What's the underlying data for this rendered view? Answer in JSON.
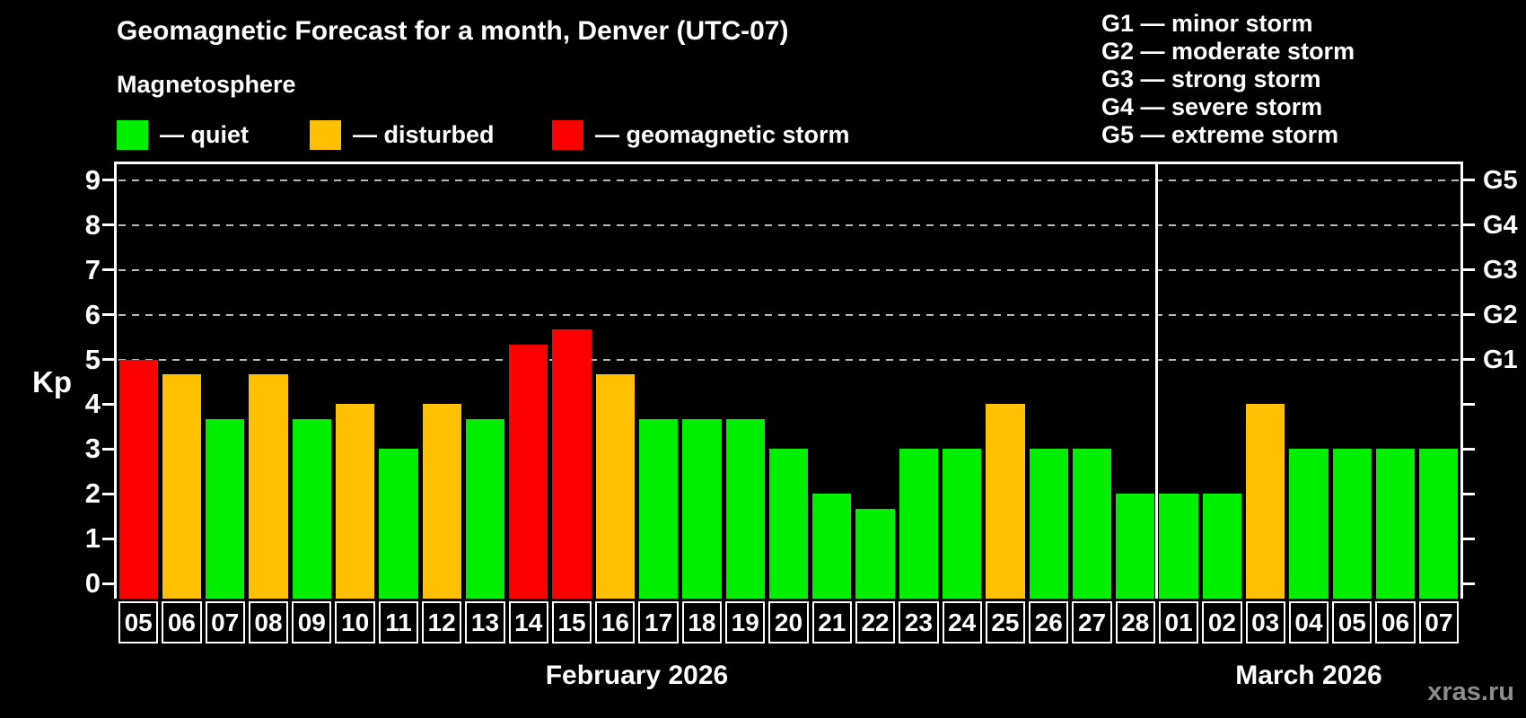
{
  "title": "Geomagnetic Forecast for a month, Denver (UTC-07)",
  "subtitle": "Magnetosphere",
  "legend": {
    "items": [
      {
        "key": "quiet",
        "label": "— quiet",
        "color": "#00ee00"
      },
      {
        "key": "disturbed",
        "label": "— disturbed",
        "color": "#ffc000"
      },
      {
        "key": "storm",
        "label": "— geomagnetic storm",
        "color": "#ff0000"
      }
    ]
  },
  "g_legend": {
    "lines": [
      "G1 — minor storm",
      "G2 — moderate storm",
      "G3 — strong storm",
      "G4 — severe storm",
      "G5 — extreme storm"
    ]
  },
  "y_axis": {
    "label": "Kp",
    "ticks": [
      "0",
      "1",
      "2",
      "3",
      "4",
      "5",
      "6",
      "7",
      "8",
      "9"
    ]
  },
  "right_axis": {
    "labels": [
      {
        "text": "G1",
        "kp": 5
      },
      {
        "text": "G2",
        "kp": 6
      },
      {
        "text": "G3",
        "kp": 7
      },
      {
        "text": "G4",
        "kp": 8
      },
      {
        "text": "G5",
        "kp": 9
      }
    ]
  },
  "watermark": "xras.ru",
  "chart_data": {
    "type": "bar",
    "title": "Geomagnetic Forecast for a month, Denver (UTC-07)",
    "xlabel": "",
    "ylabel": "Kp",
    "ylim": [
      0,
      9.4
    ],
    "grid": "horizontal dashed lines at Kp 5,6,7,8,9 (G1–G5)",
    "legend_position": "top-left",
    "g_levels_kp": [
      5,
      6,
      7,
      8,
      9
    ],
    "status_colors": {
      "quiet": "#00ee00",
      "disturbed": "#ffc000",
      "storm": "#ff0000"
    },
    "months": [
      {
        "label": "February 2026",
        "days": [
          {
            "day": "05",
            "kp": 5.0,
            "status": "storm"
          },
          {
            "day": "06",
            "kp": 4.67,
            "status": "disturbed"
          },
          {
            "day": "07",
            "kp": 3.67,
            "status": "quiet"
          },
          {
            "day": "08",
            "kp": 4.67,
            "status": "disturbed"
          },
          {
            "day": "09",
            "kp": 3.67,
            "status": "quiet"
          },
          {
            "day": "10",
            "kp": 4.0,
            "status": "disturbed"
          },
          {
            "day": "11",
            "kp": 3.0,
            "status": "quiet"
          },
          {
            "day": "12",
            "kp": 4.0,
            "status": "disturbed"
          },
          {
            "day": "13",
            "kp": 3.67,
            "status": "quiet"
          },
          {
            "day": "14",
            "kp": 5.33,
            "status": "storm"
          },
          {
            "day": "15",
            "kp": 5.67,
            "status": "storm"
          },
          {
            "day": "16",
            "kp": 4.67,
            "status": "disturbed"
          },
          {
            "day": "17",
            "kp": 3.67,
            "status": "quiet"
          },
          {
            "day": "18",
            "kp": 3.67,
            "status": "quiet"
          },
          {
            "day": "19",
            "kp": 3.67,
            "status": "quiet"
          },
          {
            "day": "20",
            "kp": 3.0,
            "status": "quiet"
          },
          {
            "day": "21",
            "kp": 2.0,
            "status": "quiet"
          },
          {
            "day": "22",
            "kp": 1.67,
            "status": "quiet"
          },
          {
            "day": "23",
            "kp": 3.0,
            "status": "quiet"
          },
          {
            "day": "24",
            "kp": 3.0,
            "status": "quiet"
          },
          {
            "day": "25",
            "kp": 4.0,
            "status": "disturbed"
          },
          {
            "day": "26",
            "kp": 3.0,
            "status": "quiet"
          },
          {
            "day": "27",
            "kp": 3.0,
            "status": "quiet"
          },
          {
            "day": "28",
            "kp": 2.0,
            "status": "quiet"
          }
        ]
      },
      {
        "label": "March 2026",
        "days": [
          {
            "day": "01",
            "kp": 2.0,
            "status": "quiet"
          },
          {
            "day": "02",
            "kp": 2.0,
            "status": "quiet"
          },
          {
            "day": "03",
            "kp": 4.0,
            "status": "disturbed"
          },
          {
            "day": "04",
            "kp": 3.0,
            "status": "quiet"
          },
          {
            "day": "05",
            "kp": 3.0,
            "status": "quiet"
          },
          {
            "day": "06",
            "kp": 3.0,
            "status": "quiet"
          },
          {
            "day": "07",
            "kp": 3.0,
            "status": "quiet"
          }
        ]
      }
    ]
  }
}
